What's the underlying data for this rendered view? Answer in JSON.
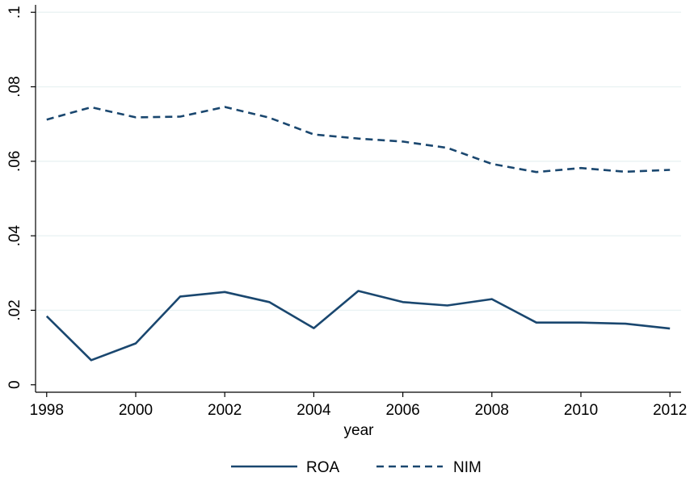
{
  "chart_data": {
    "type": "line",
    "title": "",
    "xlabel": "year",
    "ylabel": "",
    "x": [
      1998,
      1999,
      2000,
      2001,
      2002,
      2003,
      2004,
      2005,
      2006,
      2007,
      2008,
      2009,
      2010,
      2011,
      2012
    ],
    "xlim": [
      1997.75,
      2012.25
    ],
    "ylim": [
      -0.002,
      0.102
    ],
    "x_ticks": [
      1998,
      2000,
      2002,
      2004,
      2006,
      2008,
      2010,
      2012
    ],
    "x_tick_labels": [
      "1998",
      "2000",
      "2002",
      "2004",
      "2006",
      "2008",
      "2010",
      "2012"
    ],
    "y_ticks": [
      0,
      0.02,
      0.04,
      0.06,
      0.08,
      0.1
    ],
    "y_tick_labels": [
      "0",
      ".02",
      ".04",
      ".06",
      ".08",
      ".1"
    ],
    "grid": true,
    "legend_position": "bottom",
    "series": [
      {
        "name": "ROA",
        "style": "solid",
        "color": "#1a476f",
        "values": [
          0.0184,
          0.0066,
          0.0111,
          0.0237,
          0.0249,
          0.0222,
          0.0152,
          0.0252,
          0.0222,
          0.0213,
          0.023,
          0.0167,
          0.0167,
          0.0164,
          0.0151
        ]
      },
      {
        "name": "NIM",
        "style": "dashed",
        "color": "#1a476f",
        "values": [
          0.0712,
          0.0745,
          0.0718,
          0.072,
          0.0746,
          0.0717,
          0.0672,
          0.0661,
          0.0653,
          0.0636,
          0.0593,
          0.0571,
          0.0582,
          0.0572,
          0.0577
        ]
      }
    ]
  },
  "colors": {
    "line": "#1a476f",
    "grid": "#eaf2f3",
    "axis": "#000000",
    "background": "#ffffff"
  }
}
